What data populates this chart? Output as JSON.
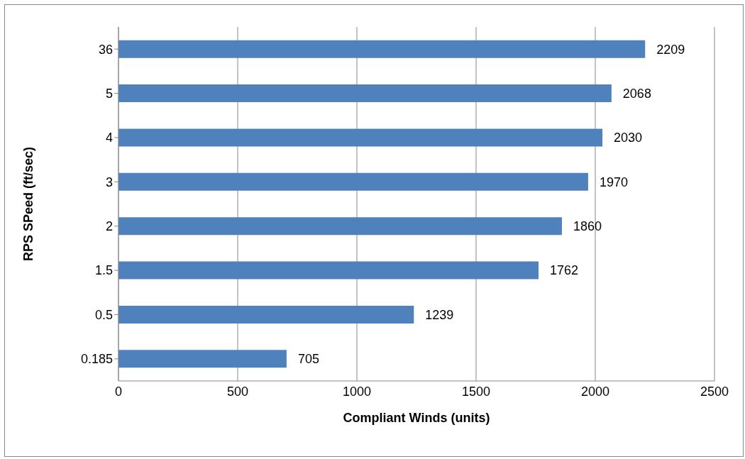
{
  "chart_data": {
    "type": "bar",
    "orientation": "horizontal",
    "xlabel": "Compliant Winds (units)",
    "ylabel": "RPS SPeed (ft/sec)",
    "categories": [
      "36",
      "5",
      "4",
      "3",
      "2",
      "1.5",
      "0.5",
      "0.185"
    ],
    "values": [
      2209,
      2068,
      2030,
      1970,
      1860,
      1762,
      1239,
      705
    ],
    "color": "#4f81bd",
    "xlim": [
      0,
      2500
    ],
    "xticks": [
      0,
      500,
      1000,
      1500,
      2000,
      2500
    ],
    "grid": "x",
    "data_labels": true
  }
}
